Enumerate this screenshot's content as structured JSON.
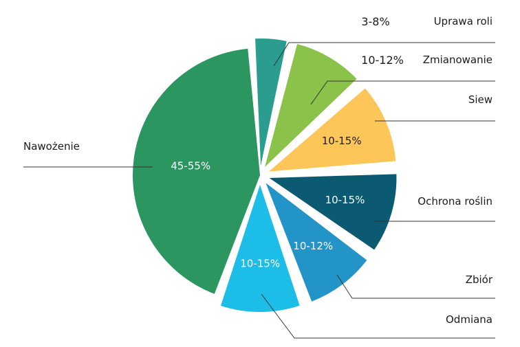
{
  "chart_data": {
    "type": "pie",
    "style": "exploded",
    "slices": [
      {
        "category": "Uprawa roli",
        "range": "3-8%",
        "value": 5.5,
        "color": "#2a9d8f",
        "label_color": "dark",
        "pct_outside": true
      },
      {
        "category": "Zmianowanie",
        "range": "10-12%",
        "value": 11,
        "color": "#8bc34a",
        "label_color": "dark",
        "pct_outside": true
      },
      {
        "category": "Siew",
        "range": "10-15%",
        "value": 12.5,
        "color": "#fec559",
        "label_color": "dark",
        "pct_outside": false
      },
      {
        "category": "Ochrona roślin",
        "range": "10-15%",
        "value": 12.5,
        "color": "#0c5a72",
        "label_color": "light",
        "pct_outside": false
      },
      {
        "category": "Zbiór",
        "range": "10-12%",
        "value": 11,
        "color": "#2394c7",
        "label_color": "light",
        "pct_outside": false
      },
      {
        "category": "Odmiana",
        "range": "10-15%",
        "value": 12.5,
        "color": "#1cbde6",
        "label_color": "light",
        "pct_outside": false
      },
      {
        "category": "Nawożenie",
        "range": "45-55%",
        "value": 50,
        "color": "#2b9660",
        "label_color": "light",
        "pct_outside": false
      }
    ]
  }
}
